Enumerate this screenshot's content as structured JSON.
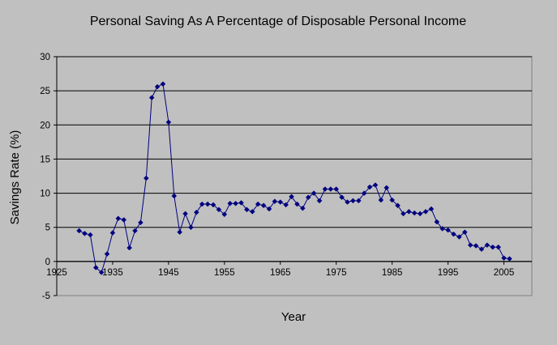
{
  "chart_data": {
    "type": "line",
    "title": "Personal Saving As A Percentage of Disposable Personal Income",
    "xlabel": "Year",
    "ylabel": "Savings Rate (%)",
    "xlim": [
      1925,
      2010
    ],
    "ylim": [
      -5,
      30
    ],
    "x_ticks": [
      "1925",
      "1935",
      "1945",
      "1955",
      "1965",
      "1975",
      "1985",
      "1995",
      "2005"
    ],
    "y_ticks": [
      "30",
      "25",
      "20",
      "15",
      "10",
      "5",
      "0",
      "-5"
    ],
    "grid": "horizontal",
    "plot_background": "#c0c0c0",
    "series": [
      {
        "color": "#000080",
        "marker": "diamond",
        "x": [
          1929,
          1930,
          1931,
          1932,
          1933,
          1934,
          1935,
          1936,
          1937,
          1938,
          1939,
          1940,
          1941,
          1942,
          1943,
          1944,
          1945,
          1946,
          1947,
          1948,
          1949,
          1950,
          1951,
          1952,
          1953,
          1954,
          1955,
          1956,
          1957,
          1958,
          1959,
          1960,
          1961,
          1962,
          1963,
          1964,
          1965,
          1966,
          1967,
          1968,
          1969,
          1970,
          1971,
          1972,
          1973,
          1974,
          1975,
          1976,
          1977,
          1978,
          1979,
          1980,
          1981,
          1982,
          1983,
          1984,
          1985,
          1986,
          1987,
          1988,
          1989,
          1990,
          1991,
          1992,
          1993,
          1994,
          1995,
          1996,
          1997,
          1998,
          1999,
          2000,
          2001,
          2002,
          2003,
          2004,
          2005,
          2006
        ],
        "values": [
          4.5,
          4.1,
          3.9,
          -0.9,
          -1.6,
          1.1,
          4.2,
          6.3,
          6.1,
          2.0,
          4.5,
          5.7,
          12.2,
          24.0,
          25.6,
          26.0,
          20.4,
          9.6,
          4.3,
          7.0,
          5.0,
          7.2,
          8.4,
          8.4,
          8.3,
          7.6,
          6.9,
          8.5,
          8.5,
          8.6,
          7.6,
          7.3,
          8.4,
          8.2,
          7.7,
          8.8,
          8.7,
          8.3,
          9.5,
          8.4,
          7.8,
          9.4,
          10.0,
          8.9,
          10.6,
          10.6,
          10.6,
          9.4,
          8.7,
          8.9,
          8.9,
          10.0,
          10.9,
          11.2,
          9.0,
          10.8,
          9.0,
          8.2,
          7.0,
          7.3,
          7.1,
          7.0,
          7.3,
          7.7,
          5.8,
          4.8,
          4.6,
          4.0,
          3.6,
          4.3,
          2.4,
          2.3,
          1.8,
          2.4,
          2.1,
          2.1,
          0.5,
          0.4
        ]
      }
    ]
  }
}
